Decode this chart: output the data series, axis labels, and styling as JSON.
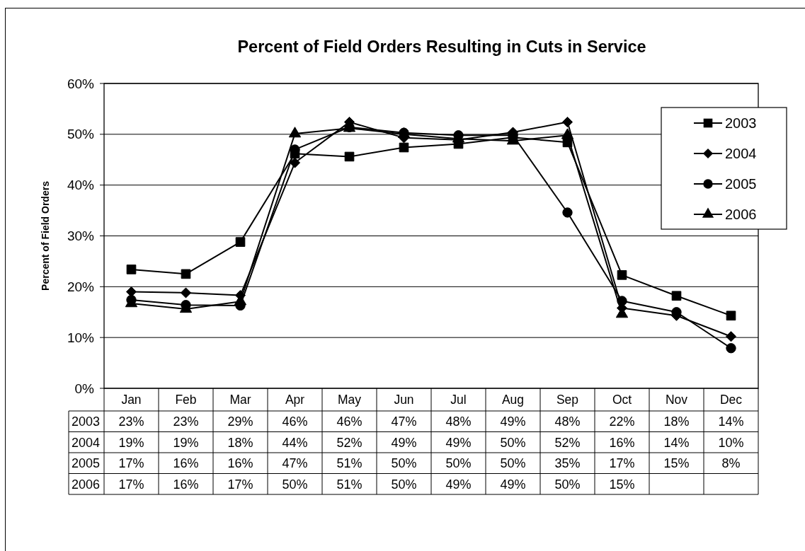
{
  "chart_data": {
    "type": "line",
    "title": "Percent of Field Orders Resulting in Cuts in Service",
    "ylabel": "Percent of Field Orders",
    "categories": [
      "Jan",
      "Feb",
      "Mar",
      "Apr",
      "May",
      "Jun",
      "Jul",
      "Aug",
      "Sep",
      "Oct",
      "Nov",
      "Dec"
    ],
    "series": [
      {
        "name": "2003",
        "color": "#000000",
        "marker": "square",
        "values": [
          23.4,
          22.5,
          28.8,
          46.2,
          45.6,
          47.4,
          48.1,
          49.4,
          48.4,
          22.3,
          18.2,
          14.3
        ],
        "value_labels": [
          "23%",
          "23%",
          "29%",
          "46%",
          "46%",
          "47%",
          "48%",
          "49%",
          "48%",
          "22%",
          "18%",
          "14%"
        ]
      },
      {
        "name": "2004",
        "color": "#000000",
        "marker": "diamond",
        "values": [
          19.0,
          18.8,
          18.3,
          44.4,
          52.4,
          49.3,
          48.9,
          50.4,
          52.4,
          15.8,
          14.3,
          10.2
        ],
        "value_labels": [
          "19%",
          "19%",
          "18%",
          "44%",
          "52%",
          "49%",
          "49%",
          "50%",
          "52%",
          "16%",
          "14%",
          "10%"
        ]
      },
      {
        "name": "2005",
        "color": "#000000",
        "marker": "circle",
        "values": [
          17.4,
          16.4,
          16.3,
          47.0,
          51.4,
          50.3,
          49.8,
          49.8,
          34.6,
          17.2,
          15.0,
          7.9
        ],
        "value_labels": [
          "17%",
          "16%",
          "16%",
          "47%",
          "51%",
          "50%",
          "50%",
          "50%",
          "35%",
          "17%",
          "15%",
          "8%"
        ]
      },
      {
        "name": "2006",
        "color": "#000000",
        "marker": "triangle",
        "values": [
          16.7,
          15.6,
          17.1,
          50.1,
          51.2,
          50.0,
          49.1,
          48.7,
          49.8,
          14.6,
          null,
          null
        ],
        "value_labels": [
          "17%",
          "16%",
          "17%",
          "50%",
          "51%",
          "50%",
          "49%",
          "49%",
          "50%",
          "15%",
          null,
          null
        ]
      }
    ],
    "ylim": [
      0,
      60
    ],
    "yticks": [
      {
        "value": 0,
        "label": "0%"
      },
      {
        "value": 10,
        "label": "10%"
      },
      {
        "value": 20,
        "label": "20%"
      },
      {
        "value": 30,
        "label": "30%"
      },
      {
        "value": 40,
        "label": "40%"
      },
      {
        "value": 50,
        "label": "50%"
      },
      {
        "value": 60,
        "label": "60%"
      }
    ],
    "grid": "y",
    "legend": "top right",
    "line_style": "solid"
  }
}
